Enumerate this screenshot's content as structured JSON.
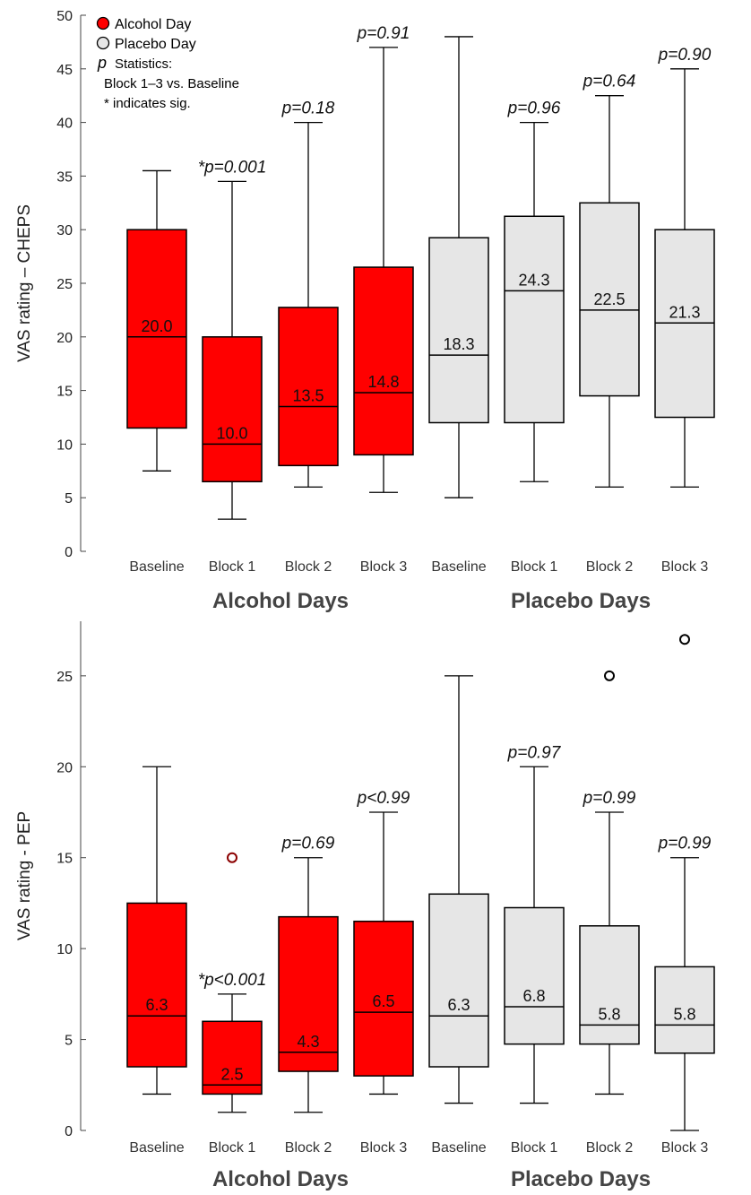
{
  "legend": {
    "items": [
      {
        "label": "Alcohol Day",
        "color": "#ff0000"
      },
      {
        "label": "Placebo Day",
        "color": "#e6e6e6"
      }
    ],
    "p_symbol": "p",
    "lines": [
      "Statistics:",
      "Block 1–3 vs. Baseline",
      "* indicates sig."
    ]
  },
  "chart_data": [
    {
      "type": "box",
      "ylabel": "VAS rating – CHEPS",
      "ylim": [
        0,
        50
      ],
      "yticks": [
        0,
        5,
        10,
        15,
        20,
        25,
        30,
        35,
        40,
        45,
        50
      ],
      "categories": [
        "Baseline",
        "Block 1",
        "Block 2",
        "Block 3",
        "Baseline",
        "Block 1",
        "Block 2",
        "Block 3"
      ],
      "group_labels": [
        "Alcohol Days",
        "Placebo Days"
      ],
      "colors": [
        "#ff0000",
        "#e6e6e6"
      ],
      "boxes": [
        {
          "group": 0,
          "min": 7.5,
          "q1": 11.5,
          "median": 20.0,
          "q3": 30.0,
          "max": 35.5,
          "median_label": "20.0",
          "p_label": "",
          "outliers": []
        },
        {
          "group": 0,
          "min": 3.0,
          "q1": 6.5,
          "median": 10.0,
          "q3": 20.0,
          "max": 34.5,
          "median_label": "10.0",
          "p_label": "*p=0.001",
          "outliers": []
        },
        {
          "group": 0,
          "min": 6.0,
          "q1": 8.0,
          "median": 13.5,
          "q3": 22.75,
          "max": 40.0,
          "median_label": "13.5",
          "p_label": "p=0.18",
          "outliers": []
        },
        {
          "group": 0,
          "min": 5.5,
          "q1": 9.0,
          "median": 14.8,
          "q3": 26.5,
          "max": 47.0,
          "median_label": "14.8",
          "p_label": "p=0.91",
          "outliers": []
        },
        {
          "group": 1,
          "min": 5.0,
          "q1": 12.0,
          "median": 18.3,
          "q3": 29.25,
          "max": 48.0,
          "median_label": "18.3",
          "p_label": "",
          "outliers": []
        },
        {
          "group": 1,
          "min": 6.5,
          "q1": 12.0,
          "median": 24.3,
          "q3": 31.25,
          "max": 40.0,
          "median_label": "24.3",
          "p_label": "p=0.96",
          "outliers": []
        },
        {
          "group": 1,
          "min": 6.0,
          "q1": 14.5,
          "median": 22.5,
          "q3": 32.5,
          "max": 42.5,
          "median_label": "22.5",
          "p_label": "p=0.64",
          "outliers": []
        },
        {
          "group": 1,
          "min": 6.0,
          "q1": 12.5,
          "median": 21.3,
          "q3": 30.0,
          "max": 45.0,
          "median_label": "21.3",
          "p_label": "p=0.90",
          "outliers": []
        }
      ]
    },
    {
      "type": "box",
      "ylabel": "VAS rating - PEP",
      "ylim": [
        0,
        28
      ],
      "yticks": [
        0,
        5,
        10,
        15,
        20,
        25
      ],
      "categories": [
        "Baseline",
        "Block 1",
        "Block 2",
        "Block 3",
        "Baseline",
        "Block 1",
        "Block 2",
        "Block 3"
      ],
      "group_labels": [
        "Alcohol Days",
        "Placebo Days"
      ],
      "colors": [
        "#ff0000",
        "#e6e6e6"
      ],
      "boxes": [
        {
          "group": 0,
          "min": 2.0,
          "q1": 3.5,
          "median": 6.3,
          "q3": 12.5,
          "max": 20.0,
          "median_label": "6.3",
          "p_label": "",
          "outliers": []
        },
        {
          "group": 0,
          "min": 1.0,
          "q1": 2.0,
          "median": 2.5,
          "q3": 6.0,
          "max": 7.5,
          "median_label": "2.5",
          "p_label": "*p<0.001",
          "outliers": [
            15.0
          ]
        },
        {
          "group": 0,
          "min": 1.0,
          "q1": 3.25,
          "median": 4.3,
          "q3": 11.75,
          "max": 15.0,
          "median_label": "4.3",
          "p_label": "p=0.69",
          "outliers": []
        },
        {
          "group": 0,
          "min": 2.0,
          "q1": 3.0,
          "median": 6.5,
          "q3": 11.5,
          "max": 17.5,
          "median_label": "6.5",
          "p_label": "p<0.99",
          "outliers": []
        },
        {
          "group": 1,
          "min": 1.5,
          "q1": 3.5,
          "median": 6.3,
          "q3": 13.0,
          "max": 25.0,
          "median_label": "6.3",
          "p_label": "",
          "outliers": []
        },
        {
          "group": 1,
          "min": 1.5,
          "q1": 4.75,
          "median": 6.8,
          "q3": 12.25,
          "max": 20.0,
          "median_label": "6.8",
          "p_label": "p=0.97",
          "outliers": []
        },
        {
          "group": 1,
          "min": 2.0,
          "q1": 4.75,
          "median": 5.8,
          "q3": 11.25,
          "max": 17.5,
          "median_label": "5.8",
          "p_label": "p=0.99",
          "outliers": [
            25.0
          ]
        },
        {
          "group": 1,
          "min": 0.0,
          "q1": 4.25,
          "median": 5.8,
          "q3": 9.0,
          "max": 15.0,
          "median_label": "5.8",
          "p_label": "p=0.99",
          "outliers": [
            27.0
          ]
        }
      ]
    }
  ]
}
